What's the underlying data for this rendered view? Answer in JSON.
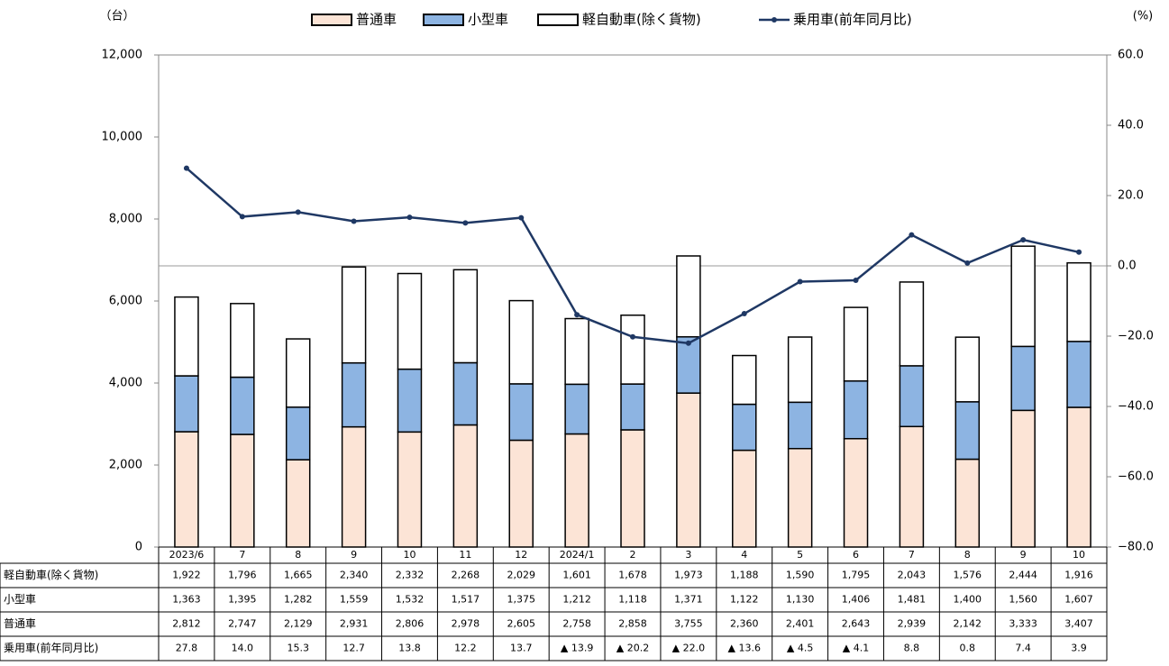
{
  "chart_data": {
    "type": "bar_line_table",
    "y_label": "（台）",
    "y2_label": "(%)",
    "categories": [
      "2023/6",
      "7",
      "8",
      "9",
      "10",
      "11",
      "12",
      "2024/1",
      "2",
      "3",
      "4",
      "5",
      "6",
      "7",
      "8",
      "9",
      "10"
    ],
    "ylim": [
      0,
      12000
    ],
    "yticks": [
      0,
      {
        "value": 2000,
        "label": "2,000"
      },
      {
        "value": 4000,
        "label": "4,000"
      },
      {
        "value": 6000,
        "label": "6,000"
      },
      {
        "value": 8000,
        "label": "8,000"
      },
      {
        "value": 10000,
        "label": "10,000"
      },
      {
        "value": 12000,
        "label": "12,000"
      }
    ],
    "y2lim": [
      -80,
      60
    ],
    "y2ticks": [
      {
        "value": -80,
        "label": "−80.0"
      },
      {
        "value": -60,
        "label": "−60.0"
      },
      {
        "value": -40,
        "label": "−40.0"
      },
      {
        "value": -20,
        "label": "−20.0"
      },
      {
        "value": 0,
        "label": "0.0"
      },
      {
        "value": 20,
        "label": "20.0"
      },
      {
        "value": 40,
        "label": "40.0"
      },
      {
        "value": 60,
        "label": "60.0"
      }
    ],
    "series": [
      {
        "name": "普通車",
        "color": "#fce4d6",
        "values": [
          2812,
          2747,
          2129,
          2931,
          2806,
          2978,
          2605,
          2758,
          2858,
          3755,
          2360,
          2401,
          2643,
          2939,
          2142,
          3333,
          3407
        ],
        "value_labels": [
          "2,812",
          "2,747",
          "2,129",
          "2,931",
          "2,806",
          "2,978",
          "2,605",
          "2,758",
          "2,858",
          "3,755",
          "2,360",
          "2,401",
          "2,643",
          "2,939",
          "2,142",
          "3,333",
          "3,407"
        ]
      },
      {
        "name": "小型車",
        "color": "#8db4e2",
        "values": [
          1363,
          1395,
          1282,
          1559,
          1532,
          1517,
          1375,
          1212,
          1118,
          1371,
          1122,
          1130,
          1406,
          1481,
          1400,
          1560,
          1607
        ],
        "value_labels": [
          "1,363",
          "1,395",
          "1,282",
          "1,559",
          "1,532",
          "1,517",
          "1,375",
          "1,212",
          "1,118",
          "1,371",
          "1,122",
          "1,130",
          "1,406",
          "1,481",
          "1,400",
          "1,560",
          "1,607"
        ]
      },
      {
        "name": "軽自動車(除く貨物)",
        "color": "#ffffff",
        "values": [
          1922,
          1796,
          1665,
          2340,
          2332,
          2268,
          2029,
          1601,
          1678,
          1973,
          1188,
          1590,
          1795,
          2043,
          1576,
          2444,
          1916
        ],
        "value_labels": [
          "1,922",
          "1,796",
          "1,665",
          "2,340",
          "2,332",
          "2,268",
          "2,029",
          "1,601",
          "1,678",
          "1,973",
          "1,188",
          "1,590",
          "1,795",
          "2,043",
          "1,576",
          "2,444",
          "1,916"
        ]
      },
      {
        "name": "乗用車(前年同月比)",
        "color": "#1f3864",
        "axis": "y2",
        "values": [
          27.8,
          14.0,
          15.3,
          12.7,
          13.8,
          12.2,
          13.7,
          -13.9,
          -20.2,
          -22.0,
          -13.6,
          -4.5,
          -4.1,
          8.8,
          0.8,
          7.4,
          3.9
        ],
        "value_labels": [
          "27.8",
          "14.0",
          "15.3",
          "12.7",
          "13.8",
          "12.2",
          "13.7",
          "▲ 13.9",
          "▲ 20.2",
          "▲ 22.0",
          "▲ 13.6",
          "▲ 4.5",
          "▲ 4.1",
          "8.8",
          "0.8",
          "7.4",
          "3.9"
        ]
      }
    ]
  }
}
